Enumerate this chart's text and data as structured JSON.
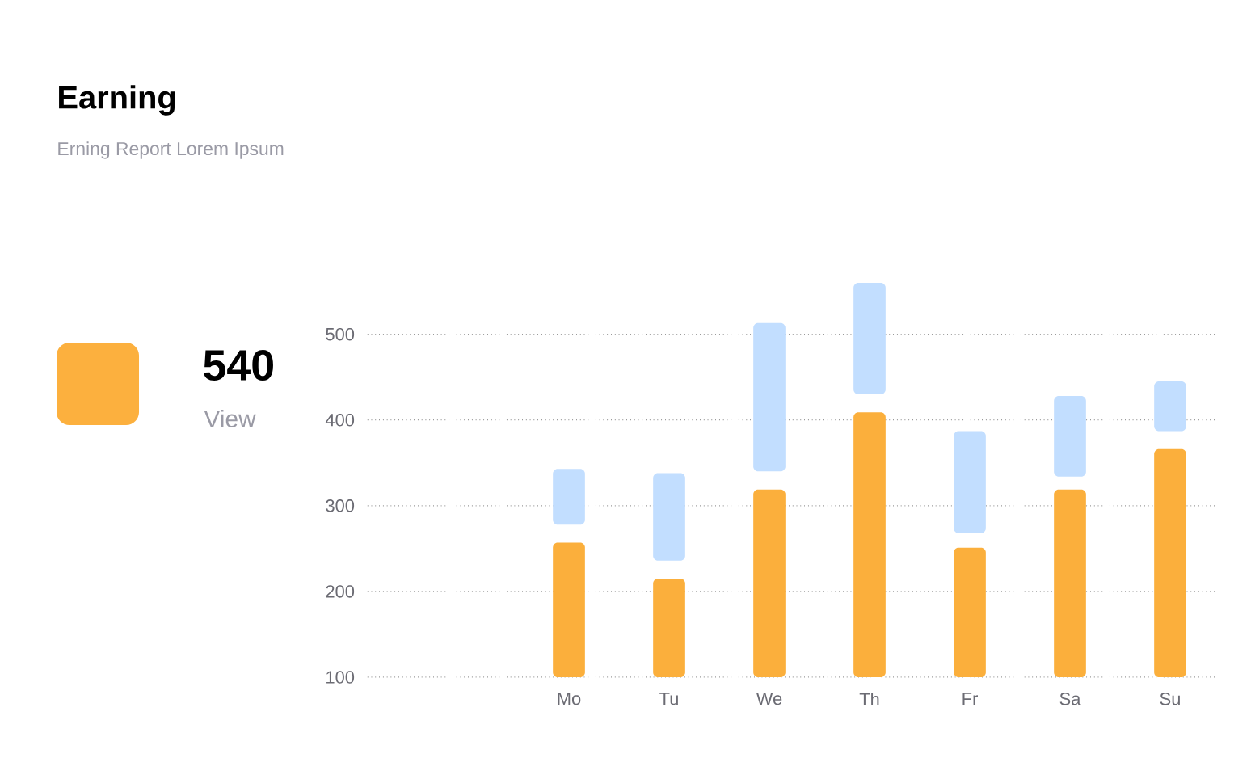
{
  "chart_data": {
    "type": "bar",
    "title": "Earning",
    "subtitle": "Erning Report Lorem Ipsum",
    "annotations": [
      "540",
      "View"
    ],
    "categories": [
      null,
      "Mo",
      "Tu",
      "We",
      "Th",
      "Fr",
      "Sa",
      "Su"
    ],
    "series": [
      {
        "color": "#fbaf3c",
        "base": [
          null,
          100,
          100,
          100,
          100,
          100,
          100,
          100
        ],
        "values": [
          null,
          157,
          115,
          219,
          309,
          151,
          219,
          266
        ]
      },
      {
        "color": "#c2deff",
        "base": [
          null,
          278,
          236,
          340,
          430,
          268,
          334,
          387
        ],
        "values": [
          null,
          65,
          102,
          173,
          130,
          119,
          94,
          58
        ]
      }
    ],
    "ylim": [
      100,
      560
    ],
    "yticks": [
      100,
      200,
      300,
      400,
      500
    ],
    "grid": "y"
  }
}
